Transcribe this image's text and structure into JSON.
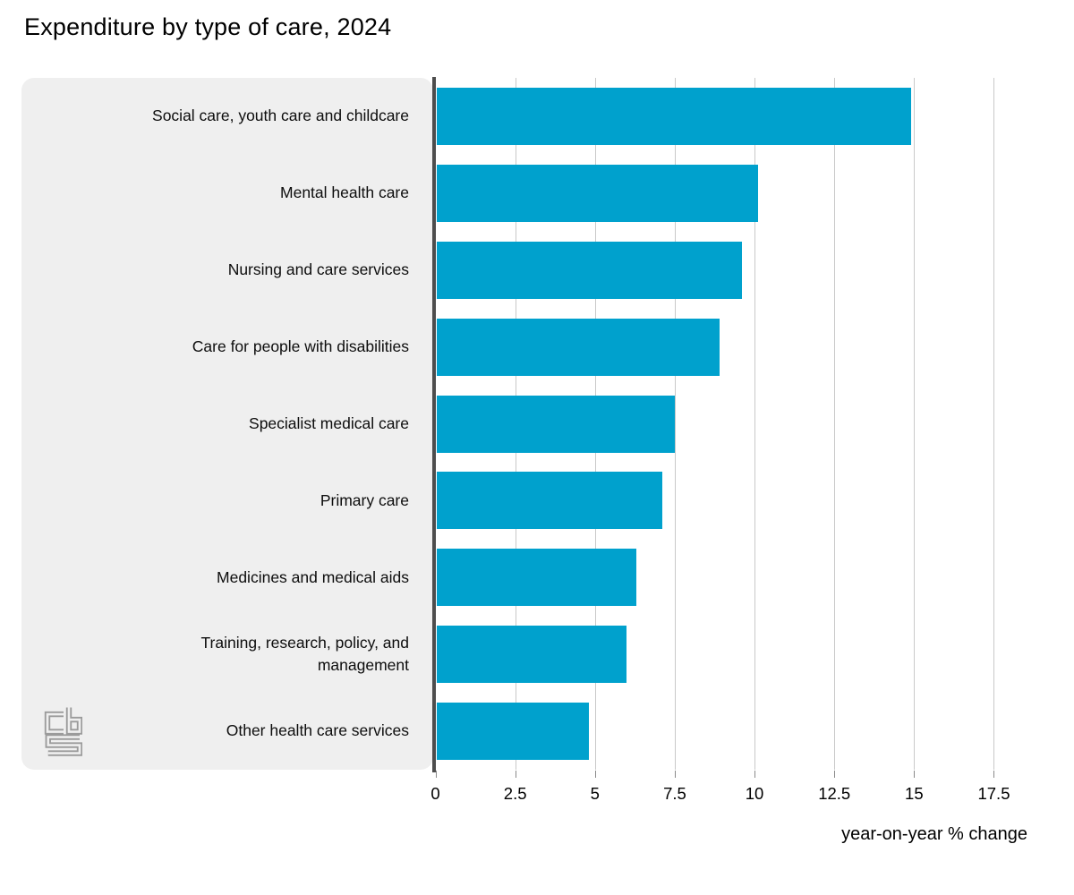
{
  "title": "Expenditure by type of care, 2024",
  "chart_data": {
    "type": "bar",
    "orientation": "horizontal",
    "title": "Expenditure by type of care, 2024",
    "categories": [
      "Social care, youth care and childcare",
      "Mental health care",
      "Nursing and care services",
      "Care for people with disabilities",
      "Specialist medical care",
      "Primary care",
      "Medicines and medical aids",
      "Training, research, policy, and management",
      "Other health care services"
    ],
    "values": [
      14.9,
      10.1,
      9.6,
      8.9,
      7.5,
      7.1,
      6.3,
      6.0,
      4.8
    ],
    "xlabel": "year-on-year % change",
    "ylabel": "",
    "xlim": [
      0,
      17.5
    ],
    "xticks": [
      0,
      2.5,
      5,
      7.5,
      10,
      12.5,
      15,
      17.5
    ],
    "xtick_labels": [
      "0",
      "2.5",
      "5",
      "7.5",
      "10",
      "12.5",
      "15",
      "17.5"
    ],
    "grid": true,
    "legend": "none",
    "bar_color": "#00a1cd"
  },
  "colors": {
    "bar": "#00a1cd",
    "label_panel_bg": "#efefef",
    "axis_line": "#4d4d4d",
    "gridline": "#c9c9c9",
    "logo": "#9b9b9b"
  },
  "logo": {
    "name": "CBS (Statistics Netherlands) logo"
  }
}
